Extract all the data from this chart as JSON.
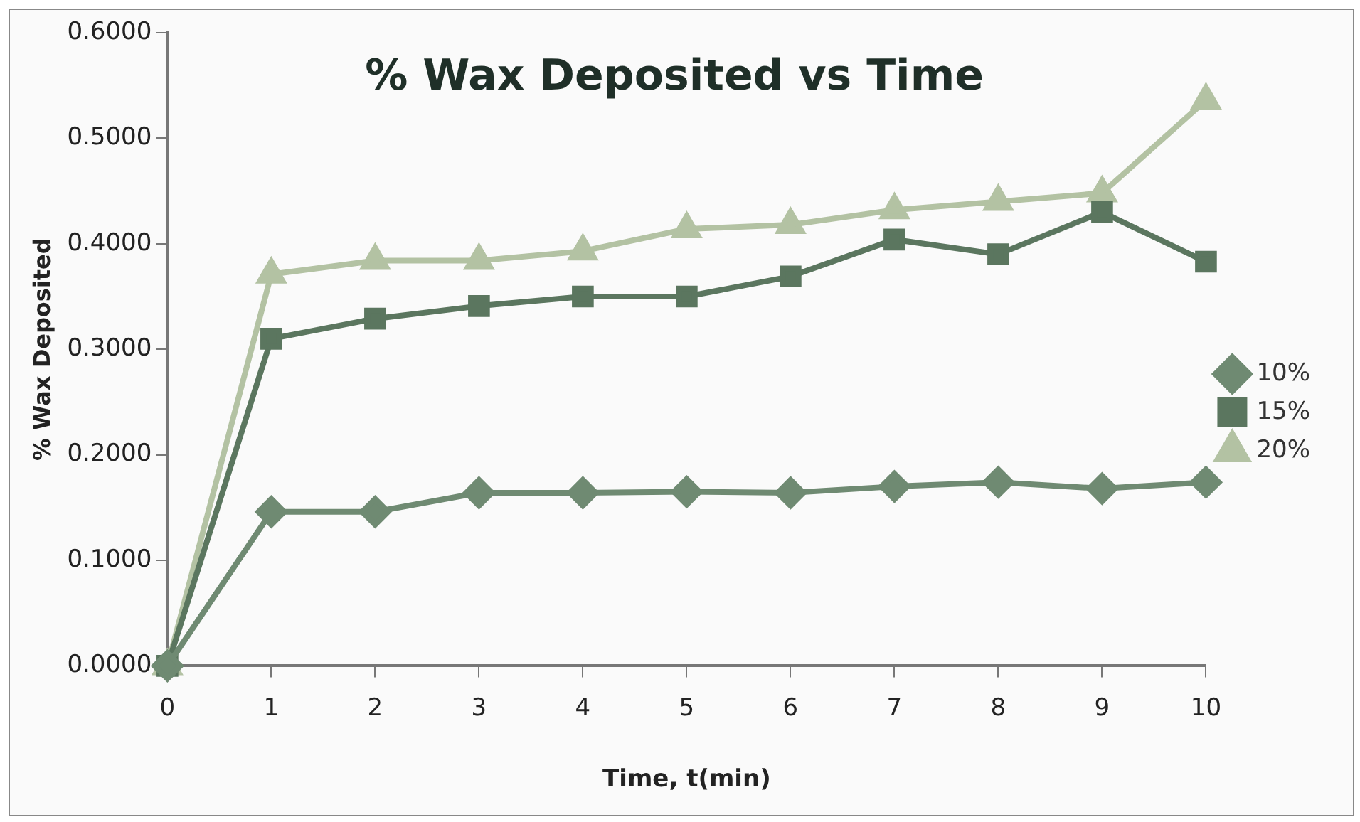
{
  "chart_data": {
    "type": "line",
    "title": "% Wax Deposited vs Time",
    "xlabel": "Time, t(min)",
    "ylabel": "% Wax Deposited",
    "x": [
      0,
      1,
      2,
      3,
      4,
      5,
      6,
      7,
      8,
      9,
      10
    ],
    "xlim": [
      0,
      10
    ],
    "xticks": [
      0,
      1,
      2,
      3,
      4,
      5,
      6,
      7,
      8,
      9,
      10
    ],
    "ylim": [
      0,
      0.6
    ],
    "yticks": [
      {
        "value": 0,
        "label": "0.0000"
      },
      {
        "value": 0.1,
        "label": "0.1000"
      },
      {
        "value": 0.2,
        "label": "0.2000"
      },
      {
        "value": 0.3,
        "label": "0.3000"
      },
      {
        "value": 0.4,
        "label": "0.4000"
      },
      {
        "value": 0.5,
        "label": "0.5000"
      },
      {
        "value": 0.6,
        "label": "0.6000"
      }
    ],
    "grid": false,
    "legend": "right",
    "series": [
      {
        "name": "10%",
        "color": "#6f8a72",
        "marker": "diamond",
        "values": [
          0,
          0.146,
          0.146,
          0.164,
          0.164,
          0.165,
          0.164,
          0.17,
          0.174,
          0.168,
          0.174
        ]
      },
      {
        "name": "15%",
        "color": "#5b765f",
        "marker": "square",
        "values": [
          0,
          0.31,
          0.329,
          0.341,
          0.35,
          0.35,
          0.369,
          0.404,
          0.39,
          0.43,
          0.383
        ]
      },
      {
        "name": "20%",
        "color": "#b3c2a3",
        "marker": "triangle",
        "values": [
          0,
          0.371,
          0.384,
          0.384,
          0.393,
          0.414,
          0.418,
          0.432,
          0.44,
          0.448,
          0.536
        ]
      }
    ]
  }
}
